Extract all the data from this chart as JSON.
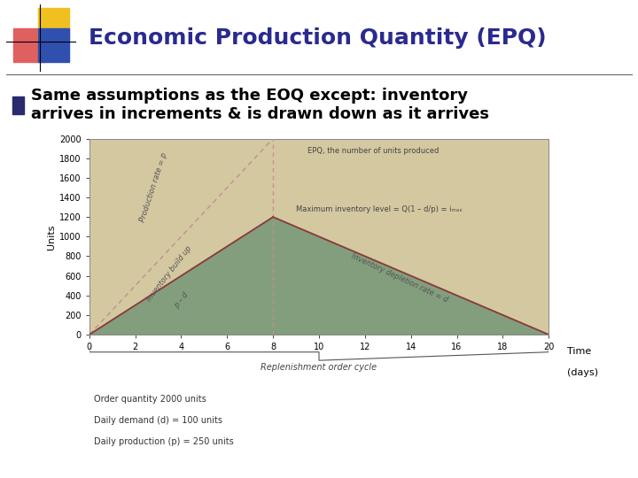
{
  "title": "Economic Production Quantity (EPQ)",
  "bullet_text": "Same assumptions as the EOQ except: inventory\narrives in increments & is drawn down as it arrives",
  "title_color": "#2a2a8f",
  "title_fontsize": 18,
  "bullet_fontsize": 13,
  "bg_color": "#ffffff",
  "chart": {
    "xlim": [
      0,
      20
    ],
    "ylim": [
      0,
      2000
    ],
    "xticks": [
      0,
      2,
      4,
      6,
      8,
      10,
      12,
      14,
      16,
      18,
      20
    ],
    "yticks": [
      0,
      200,
      400,
      600,
      800,
      1000,
      1200,
      1400,
      1600,
      1800,
      2000
    ],
    "xlabel_right": "Time",
    "xlabel_right2": "(days)",
    "ylabel": "Units",
    "replenishment_label": "Replenishment order cycle",
    "epq_label": "EPQ, the number of units produced",
    "max_inv_label": "Maximum inventory level = Q(1 – d/p) = iₘₐₓ",
    "prod_rate_label": "Production rate = p",
    "inv_buildup_label": "Inventory build up",
    "inv_buildup_label2": "p – d",
    "inv_depletion_label": "Inventory depletion rate = d",
    "footnote1": "Order quantity 2000 units",
    "footnote2": "Daily demand (d) = 100 units",
    "footnote3": "Daily production (p) = 250 units",
    "production_end": 8,
    "total_end": 20,
    "Q": 2000,
    "d": 100,
    "p": 250,
    "tan_bg_color": "#d4c8a0",
    "green_fill_color": "#7a9a7a",
    "dashed_line_color": "#c09090",
    "line_color": "#8b3a3a",
    "border_color": "#888888",
    "footnote_fontsize": 7,
    "axis_label_fontsize": 8,
    "tick_fontsize": 7
  },
  "logo_colors": {
    "yellow": "#f0c020",
    "pink": "#e06060",
    "blue": "#3050b0"
  }
}
